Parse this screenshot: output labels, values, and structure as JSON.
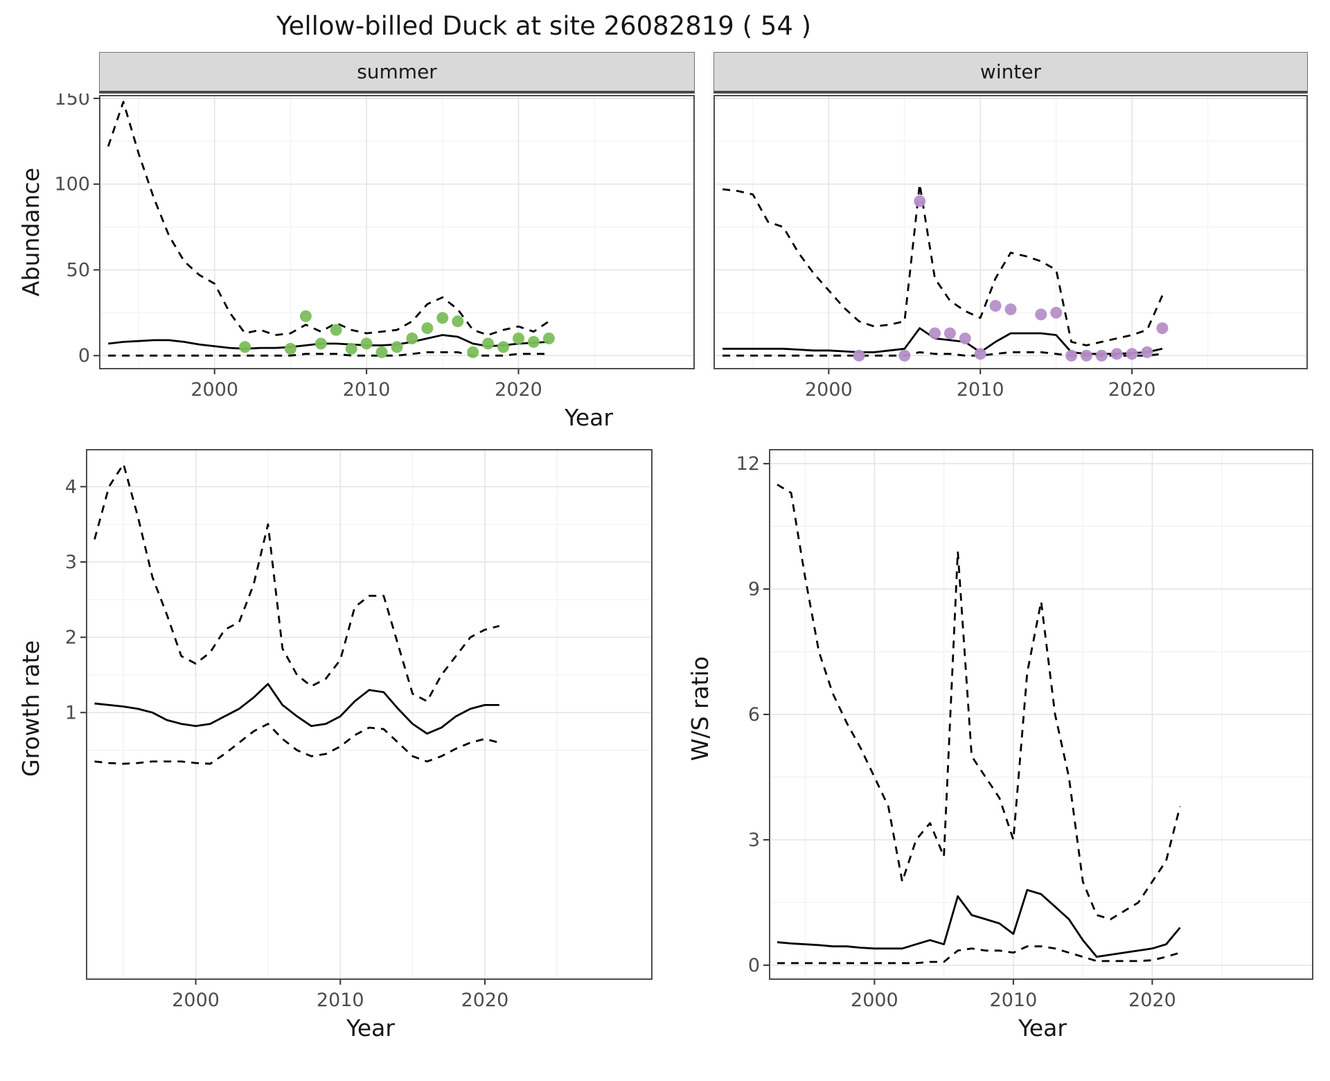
{
  "title": "Yellow-billed Duck at site 26082819 ( 54 )",
  "colors": {
    "summer_points": "#7BBE5B",
    "winter_points": "#B58FC9",
    "line": "#000000",
    "grid_major": "#E4E4E4",
    "grid_minor": "#F0F0F0",
    "panel_border": "#4D4D4D",
    "axis_text": "#4D4D4D",
    "tick_mark": "#333333",
    "strip_bg": "#D9D9D9"
  },
  "chart_data": [
    {
      "id": "abundance-summer",
      "type": "line",
      "facet": "summer",
      "xlabel": "Year",
      "ylabel": "Abundance",
      "xlim": [
        1992.4,
        2031.6
      ],
      "ylim": [
        -8,
        152
      ],
      "xticks": [
        2000,
        2010,
        2020
      ],
      "yticks": [
        0,
        50,
        100,
        150
      ],
      "x_minor": [
        1995,
        2005,
        2015,
        2025
      ],
      "y_minor": [
        25,
        75,
        125
      ],
      "x": [
        1993,
        1994,
        1995,
        1996,
        1997,
        1998,
        1999,
        2000,
        2001,
        2002,
        2003,
        2004,
        2005,
        2006,
        2007,
        2008,
        2009,
        2010,
        2011,
        2012,
        2013,
        2014,
        2015,
        2016,
        2017,
        2018,
        2019,
        2020,
        2021,
        2022
      ],
      "series": [
        {
          "name": "upper_95ci",
          "style": "dashed",
          "values": [
            122,
            148,
            118,
            92,
            70,
            55,
            47,
            42,
            25,
            13,
            15,
            12,
            13,
            18,
            14,
            19,
            15,
            13,
            14,
            15,
            20,
            30,
            34,
            27,
            15,
            12,
            15,
            17,
            14,
            20
          ]
        },
        {
          "name": "median",
          "style": "solid",
          "values": [
            7,
            8,
            8.5,
            9,
            9,
            8,
            6.5,
            5.5,
            4.5,
            4,
            4.5,
            4.5,
            5,
            6,
            7,
            7,
            6.5,
            6,
            6,
            6.5,
            8,
            10,
            12,
            11,
            7,
            5.5,
            6,
            7,
            7.5,
            8
          ]
        },
        {
          "name": "lower_95ci",
          "style": "dashed",
          "values": [
            0,
            0,
            0,
            0,
            0,
            0,
            0,
            0,
            0,
            0,
            0,
            0,
            0,
            1,
            1,
            1,
            0,
            0,
            0,
            0,
            1,
            2,
            2,
            2,
            0,
            0,
            0,
            1,
            1,
            1
          ]
        }
      ],
      "points": {
        "name": "observed-summer-count",
        "color_key": "summer_points",
        "x": [
          2002,
          2005,
          2006,
          2007,
          2008,
          2009,
          2010,
          2011,
          2012,
          2013,
          2014,
          2015,
          2016,
          2017,
          2018,
          2019,
          2020,
          2021,
          2022
        ],
        "y": [
          5,
          4,
          23,
          7,
          15,
          4,
          7,
          2,
          5,
          10,
          16,
          22,
          20,
          2,
          7,
          5,
          10,
          8,
          10
        ]
      }
    },
    {
      "id": "abundance-winter",
      "type": "line",
      "facet": "winter",
      "xlabel": "Year",
      "ylabel": "Abundance",
      "xlim": [
        1992.4,
        2031.6
      ],
      "ylim": [
        -8,
        152
      ],
      "xticks": [
        2000,
        2010,
        2020
      ],
      "yticks": [
        0,
        50,
        100,
        150
      ],
      "x_minor": [
        1995,
        2005,
        2015,
        2025
      ],
      "y_minor": [
        25,
        75,
        125
      ],
      "x": [
        1993,
        1994,
        1995,
        1996,
        1997,
        1998,
        1999,
        2000,
        2001,
        2002,
        2003,
        2004,
        2005,
        2006,
        2007,
        2008,
        2009,
        2010,
        2011,
        2012,
        2013,
        2014,
        2015,
        2016,
        2017,
        2018,
        2019,
        2020,
        2021,
        2022
      ],
      "series": [
        {
          "name": "upper_95ci",
          "style": "dashed",
          "values": [
            97,
            96,
            94,
            78,
            75,
            60,
            48,
            38,
            28,
            20,
            17,
            18,
            20,
            100,
            45,
            32,
            26,
            22,
            45,
            60,
            58,
            55,
            50,
            8,
            6,
            8,
            10,
            12,
            15,
            35
          ]
        },
        {
          "name": "median",
          "style": "solid",
          "values": [
            4,
            4,
            4,
            4,
            4,
            3.5,
            3,
            3,
            2.5,
            2,
            2,
            3,
            4,
            16,
            10,
            9,
            8,
            2,
            8,
            13,
            13,
            13,
            12,
            2,
            1,
            1,
            1,
            1.5,
            2,
            4
          ]
        },
        {
          "name": "lower_95ci",
          "style": "dashed",
          "values": [
            0,
            0,
            0,
            0,
            0,
            0,
            0,
            0,
            0,
            0,
            0,
            0,
            0,
            2,
            1,
            1,
            0,
            0,
            1,
            2,
            2,
            2,
            1,
            0,
            0,
            0,
            0,
            0,
            0,
            1
          ]
        }
      ],
      "points": {
        "name": "observed-winter-count",
        "color_key": "winter_points",
        "x": [
          2002,
          2005,
          2006,
          2007,
          2008,
          2009,
          2010,
          2011,
          2012,
          2014,
          2015,
          2016,
          2017,
          2018,
          2019,
          2020,
          2021,
          2022
        ],
        "y": [
          0,
          0,
          90,
          13,
          13,
          10,
          1,
          29,
          27,
          24,
          25,
          0,
          0,
          0,
          1,
          1,
          2,
          16
        ]
      }
    },
    {
      "id": "growth-rate",
      "type": "line",
      "facet": null,
      "xlabel": "Year",
      "ylabel": "Growth rate",
      "xlim": [
        1992.4,
        2031.6
      ],
      "ylim": [
        -2.55,
        4.5
      ],
      "xticks": [
        2000,
        2010,
        2020
      ],
      "yticks": [
        1,
        2,
        3,
        4
      ],
      "x_minor": [
        1995,
        2005,
        2015,
        2025
      ],
      "y_minor": [
        0.5,
        1.5,
        2.5,
        3.5
      ],
      "x": [
        1993,
        1994,
        1995,
        1996,
        1997,
        1998,
        1999,
        2000,
        2001,
        2002,
        2003,
        2004,
        2005,
        2006,
        2007,
        2008,
        2009,
        2010,
        2011,
        2012,
        2013,
        2014,
        2015,
        2016,
        2017,
        2018,
        2019,
        2020,
        2021
      ],
      "series": [
        {
          "name": "upper_95ci",
          "style": "dashed",
          "values": [
            3.3,
            4.0,
            4.3,
            3.6,
            2.8,
            2.3,
            1.75,
            1.65,
            1.8,
            2.1,
            2.2,
            2.7,
            3.5,
            1.85,
            1.5,
            1.35,
            1.45,
            1.7,
            2.4,
            2.55,
            2.55,
            1.9,
            1.25,
            1.15,
            1.5,
            1.75,
            2.0,
            2.1,
            2.15
          ]
        },
        {
          "name": "median",
          "style": "solid",
          "values": [
            1.12,
            1.1,
            1.08,
            1.05,
            1.0,
            0.9,
            0.85,
            0.82,
            0.85,
            0.95,
            1.05,
            1.2,
            1.38,
            1.1,
            0.95,
            0.82,
            0.85,
            0.95,
            1.15,
            1.3,
            1.27,
            1.05,
            0.85,
            0.72,
            0.8,
            0.95,
            1.05,
            1.1,
            1.1
          ]
        },
        {
          "name": "lower_95ci",
          "style": "dashed",
          "values": [
            0.35,
            0.33,
            0.32,
            0.33,
            0.35,
            0.35,
            0.35,
            0.33,
            0.32,
            0.45,
            0.6,
            0.75,
            0.85,
            0.65,
            0.5,
            0.42,
            0.45,
            0.55,
            0.7,
            0.8,
            0.78,
            0.6,
            0.42,
            0.35,
            0.42,
            0.52,
            0.6,
            0.65,
            0.6
          ]
        }
      ],
      "points": null
    },
    {
      "id": "ws-ratio",
      "type": "line",
      "facet": null,
      "xlabel": "Year",
      "ylabel": "W/S ratio",
      "xlim": [
        1992.4,
        2031.6
      ],
      "ylim": [
        -0.35,
        12.35
      ],
      "xticks": [
        2000,
        2010,
        2020
      ],
      "yticks": [
        0,
        3,
        6,
        9,
        12
      ],
      "x_minor": [
        1995,
        2005,
        2015,
        2025
      ],
      "y_minor": [
        1.5,
        4.5,
        7.5,
        10.5
      ],
      "x": [
        1993,
        1994,
        1995,
        1996,
        1997,
        1998,
        1999,
        2000,
        2001,
        2002,
        2003,
        2004,
        2005,
        2006,
        2007,
        2008,
        2009,
        2010,
        2011,
        2012,
        2013,
        2014,
        2015,
        2016,
        2017,
        2018,
        2019,
        2020,
        2021,
        2022
      ],
      "series": [
        {
          "name": "upper_95ci",
          "style": "dashed",
          "values": [
            11.5,
            11.3,
            9.3,
            7.5,
            6.5,
            5.8,
            5.2,
            4.5,
            3.8,
            2.0,
            3.0,
            3.4,
            2.6,
            9.9,
            5.0,
            4.5,
            4.0,
            3.0,
            7.0,
            8.7,
            6.0,
            4.5,
            2.0,
            1.2,
            1.1,
            1.3,
            1.5,
            2.0,
            2.5,
            3.8
          ]
        },
        {
          "name": "median",
          "style": "solid",
          "values": [
            0.55,
            0.52,
            0.5,
            0.48,
            0.45,
            0.45,
            0.42,
            0.4,
            0.4,
            0.4,
            0.5,
            0.6,
            0.5,
            1.65,
            1.2,
            1.1,
            1.0,
            0.75,
            1.8,
            1.7,
            1.4,
            1.1,
            0.6,
            0.2,
            0.25,
            0.3,
            0.35,
            0.4,
            0.5,
            0.9
          ]
        },
        {
          "name": "lower_95ci",
          "style": "dashed",
          "values": [
            0.05,
            0.05,
            0.05,
            0.05,
            0.05,
            0.05,
            0.05,
            0.05,
            0.05,
            0.05,
            0.05,
            0.08,
            0.08,
            0.35,
            0.4,
            0.35,
            0.35,
            0.3,
            0.45,
            0.45,
            0.4,
            0.3,
            0.2,
            0.1,
            0.1,
            0.1,
            0.1,
            0.12,
            0.2,
            0.3
          ]
        }
      ],
      "points": null
    }
  ]
}
